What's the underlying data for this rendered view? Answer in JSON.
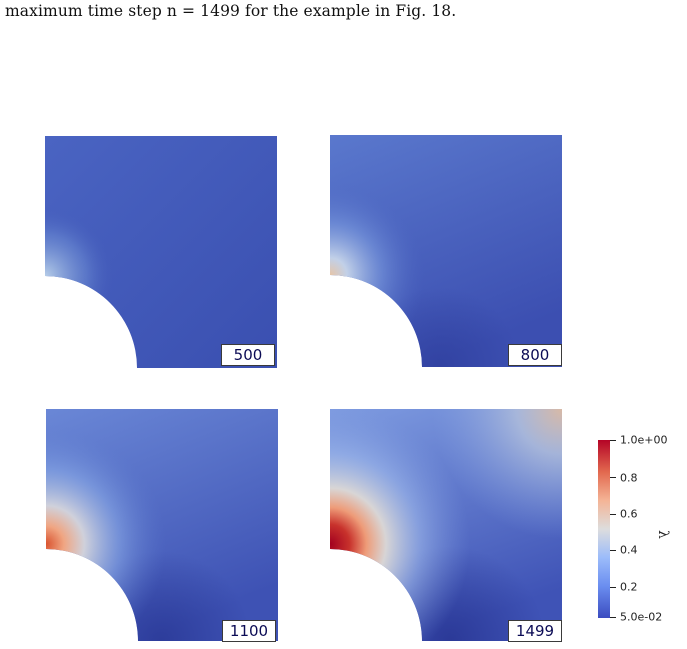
{
  "caption": "maximum time step n = 1499 for the example in Fig. 18.",
  "panels": [
    {
      "step": "500"
    },
    {
      "step": "800"
    },
    {
      "step": "1100"
    },
    {
      "step": "1499"
    }
  ],
  "colorbar": {
    "symbol": "λ",
    "labels": [
      "1.0e+00",
      "0.8",
      "0.6",
      "0.4",
      "0.2",
      "5.0e-02"
    ],
    "colormap": [
      "#3b4cc0",
      "#6b8ef0",
      "#9cbcfa",
      "#dddddd",
      "#f4b496",
      "#e2694f",
      "#b40426"
    ]
  }
}
